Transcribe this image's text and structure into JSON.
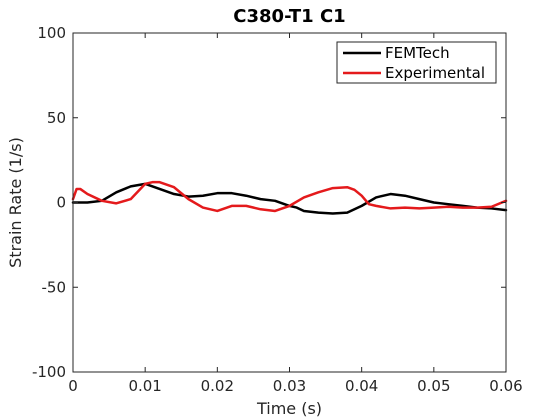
{
  "chart_data": {
    "type": "line",
    "title": "C380-T1 C1",
    "xlabel": "Time (s)",
    "ylabel": "Strain Rate (1/s)",
    "xlim": [
      0,
      0.06
    ],
    "ylim": [
      -100,
      100
    ],
    "xticks": [
      0,
      0.01,
      0.02,
      0.03,
      0.04,
      0.05,
      0.06
    ],
    "xtick_labels": [
      "0",
      "0.01",
      "0.02",
      "0.03",
      "0.04",
      "0.05",
      "0.06"
    ],
    "yticks": [
      -100,
      -50,
      0,
      50,
      100
    ],
    "ytick_labels": [
      "-100",
      "-50",
      "0",
      "50",
      "100"
    ],
    "grid": false,
    "legend_position": "top-right",
    "series": [
      {
        "name": "FEMTech",
        "color": "#000000",
        "x": [
          0,
          0.002,
          0.004,
          0.006,
          0.008,
          0.01,
          0.012,
          0.014,
          0.016,
          0.018,
          0.02,
          0.022,
          0.024,
          0.026,
          0.028,
          0.03,
          0.031,
          0.032,
          0.034,
          0.036,
          0.038,
          0.04,
          0.042,
          0.044,
          0.046,
          0.048,
          0.05,
          0.052,
          0.054,
          0.056,
          0.058,
          0.06
        ],
        "y": [
          0,
          0,
          1,
          6,
          9.5,
          11,
          8,
          5,
          3.5,
          4,
          5.5,
          5.5,
          4,
          2,
          1,
          -2,
          -3,
          -5,
          -6,
          -6.5,
          -6,
          -2,
          3,
          5,
          4,
          2,
          0,
          -1,
          -2,
          -3,
          -3.5,
          -4.5
        ]
      },
      {
        "name": "Experimental",
        "color": "#e41a1c",
        "x": [
          0,
          0.0005,
          0.001,
          0.002,
          0.004,
          0.006,
          0.008,
          0.01,
          0.011,
          0.012,
          0.014,
          0.016,
          0.018,
          0.02,
          0.022,
          0.024,
          0.026,
          0.028,
          0.03,
          0.032,
          0.034,
          0.036,
          0.038,
          0.039,
          0.04,
          0.041,
          0.042,
          0.044,
          0.046,
          0.048,
          0.05,
          0.052,
          0.054,
          0.056,
          0.058,
          0.06
        ],
        "y": [
          2,
          8,
          8,
          5,
          1,
          -0.5,
          2,
          11,
          12,
          12,
          9,
          2,
          -3,
          -5,
          -2,
          -2,
          -4,
          -5,
          -2,
          3,
          6,
          8.5,
          9,
          7.5,
          4,
          -1,
          -2,
          -3.5,
          -3,
          -3.5,
          -3,
          -2.5,
          -3,
          -3,
          -2.5,
          1
        ]
      }
    ]
  }
}
